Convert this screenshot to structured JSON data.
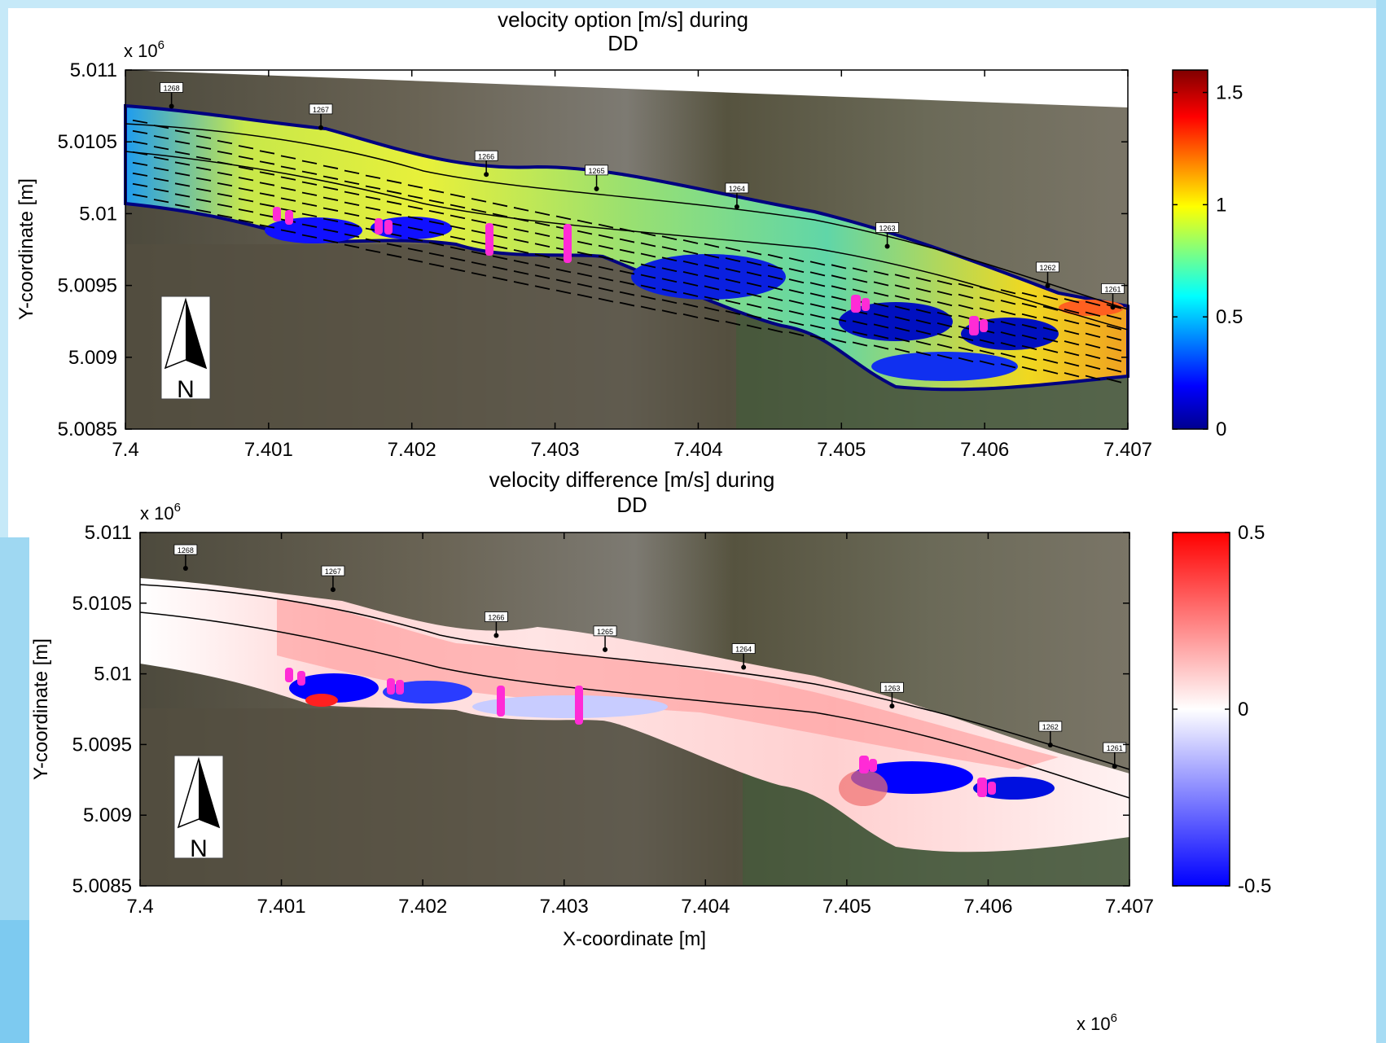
{
  "chart_data": [
    {
      "type": "heatmap",
      "title": "velocity option [m/s] during",
      "subtitle": "DD",
      "xlabel": "",
      "ylabel": "Y-coordinate [m]",
      "y_multiplier": "x 10",
      "y_multiplier_exp": "6",
      "xlim": [
        7.4,
        7.407
      ],
      "ylim": [
        5.0085,
        5.011
      ],
      "x_ticks": [
        "7.4",
        "7.401",
        "7.402",
        "7.403",
        "7.404",
        "7.405",
        "7.406",
        "7.407"
      ],
      "y_ticks": [
        "5.0085",
        "5.009",
        "5.0095",
        "5.01",
        "5.0105",
        "5.011"
      ],
      "colorbar": {
        "min": 0,
        "max": 1.6,
        "ticks": [
          "0",
          "0.5",
          "1",
          "1.5"
        ],
        "colormap": "jet"
      },
      "river_km_markers": [
        "1268",
        "1267",
        "1266",
        "1265",
        "1264",
        "1263",
        "1262",
        "1261"
      ],
      "north_arrow": "N",
      "velocity_arrows": true
    },
    {
      "type": "heatmap",
      "title": "velocity difference [m/s] during",
      "subtitle": "DD",
      "xlabel": "X-coordinate [m]",
      "ylabel": "Y-coordinate [m]",
      "y_multiplier": "x 10",
      "y_multiplier_exp": "6",
      "x_multiplier": "x 10",
      "x_multiplier_exp": "6",
      "xlim": [
        7.4,
        7.407
      ],
      "ylim": [
        5.0085,
        5.011
      ],
      "x_ticks": [
        "7.4",
        "7.401",
        "7.402",
        "7.403",
        "7.404",
        "7.405",
        "7.406",
        "7.407"
      ],
      "y_ticks": [
        "5.0085",
        "5.009",
        "5.0095",
        "5.01",
        "5.0105",
        "5.011"
      ],
      "colorbar": {
        "min": -0.5,
        "max": 0.5,
        "ticks": [
          "-0.5",
          "0",
          "0.5"
        ],
        "colormap": "blue-white-red"
      },
      "river_km_markers": [
        "1268",
        "1267",
        "1266",
        "1265",
        "1264",
        "1263",
        "1262",
        "1261"
      ],
      "north_arrow": "N"
    }
  ],
  "colors": {
    "structure_marker": "#ff2bd6",
    "frame": "#000000"
  }
}
